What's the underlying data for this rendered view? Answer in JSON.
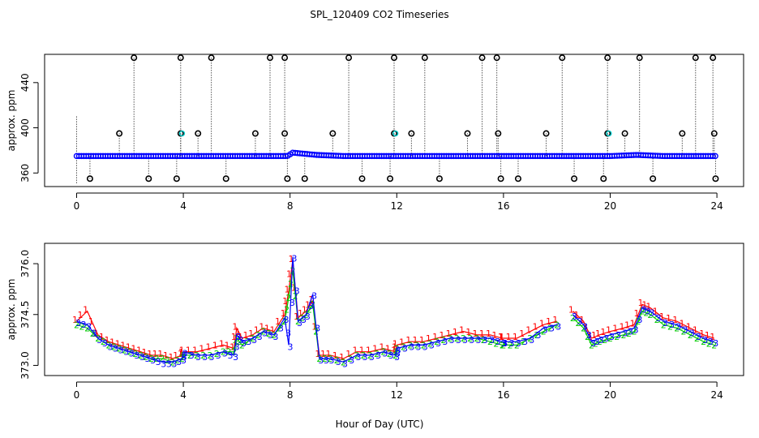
{
  "title": "SPL_120409  CO2 Timeseries",
  "xlabel": "Hour of Day (UTC)",
  "colors": {
    "series1": "#ff0000",
    "series2": "#00cc00",
    "series3": "#0000ff",
    "outlier": "#000000",
    "flag": "#00cccc",
    "frame": "#000000"
  },
  "chart_data": [
    {
      "type": "scatter",
      "name": "top-panel",
      "ylabel": "approx. ppm",
      "xlim": [
        -1.2,
        25
      ],
      "ylim": [
        348,
        465
      ],
      "xticks": [
        0,
        4,
        8,
        12,
        16,
        20,
        24
      ],
      "yticks": [
        360,
        400,
        440
      ],
      "baseline": 375,
      "baseline_series": [
        {
          "name": "series-3",
          "x": [
            0,
            2,
            4,
            6,
            7.9,
            8.1,
            9,
            10,
            12,
            14,
            16,
            18,
            20,
            21,
            22,
            24
          ],
          "y": [
            375,
            375,
            375,
            375,
            375,
            378,
            376,
            375,
            375,
            375,
            375,
            375,
            375,
            376,
            375,
            375
          ]
        }
      ],
      "outliers_high": [
        2.15,
        3.9,
        5.05,
        7.25,
        7.8,
        10.2,
        11.9,
        13.05,
        15.2,
        15.75,
        18.2,
        19.9,
        21.1,
        23.2,
        23.85
      ],
      "outliers_mid": [
        1.6,
        3.9,
        4.55,
        6.7,
        7.8,
        9.6,
        11.9,
        12.55,
        14.65,
        15.8,
        17.6,
        19.9,
        20.55,
        22.7,
        23.9
      ],
      "outliers_low": [
        0.5,
        2.7,
        3.75,
        5.6,
        7.9,
        8.55,
        10.7,
        11.75,
        13.6,
        15.9,
        16.55,
        18.65,
        19.75,
        21.6,
        23.95
      ],
      "outlier_values": {
        "high": 462,
        "mid": 395,
        "low": 355
      }
    },
    {
      "type": "line",
      "name": "bottom-panel",
      "ylabel": "approx. ppm",
      "xlim": [
        -1.2,
        25
      ],
      "ylim": [
        372.7,
        376.6
      ],
      "xticks": [
        0,
        4,
        8,
        12,
        16,
        20,
        24
      ],
      "yticks": [
        373.0,
        374.5,
        376.0
      ],
      "series": [
        {
          "name": "1",
          "x": [
            0,
            0.4,
            0.8,
            1.2,
            1.6,
            2.0,
            2.4,
            2.8,
            3.2,
            3.6,
            3.95,
            4.0,
            4.5,
            5.0,
            5.5,
            5.9,
            6.0,
            6.2,
            6.6,
            7.0,
            7.4,
            7.8,
            7.95,
            8.1,
            8.3,
            8.6,
            8.85,
            9.1,
            9.5,
            10.0,
            10.5,
            11.0,
            11.5,
            11.95,
            12.0,
            12.5,
            13.0,
            13.5,
            14.0,
            14.5,
            15.0,
            15.5,
            15.95,
            16.0,
            16.5,
            17.0,
            17.5,
            18.0,
            18.6,
            19.0,
            19.3,
            19.6,
            20.0,
            20.5,
            20.9,
            21.2,
            21.5,
            22.0,
            22.5,
            23.0,
            23.5,
            23.9
          ],
          "y": [
            374.3,
            374.6,
            373.9,
            373.7,
            373.6,
            373.5,
            373.4,
            373.3,
            373.3,
            373.2,
            373.3,
            373.4,
            373.4,
            373.5,
            373.6,
            373.5,
            374.1,
            373.8,
            373.9,
            374.1,
            374.0,
            374.5,
            375.2,
            376.1,
            374.4,
            374.6,
            374.9,
            373.3,
            373.3,
            373.2,
            373.4,
            373.4,
            373.5,
            373.4,
            373.6,
            373.7,
            373.7,
            373.8,
            373.9,
            374.0,
            373.9,
            373.9,
            373.8,
            373.8,
            373.8,
            374.0,
            374.2,
            374.3,
            374.6,
            374.3,
            373.8,
            373.9,
            374.0,
            374.1,
            374.2,
            374.8,
            374.7,
            374.4,
            374.3,
            374.1,
            373.9,
            373.8
          ]
        },
        {
          "name": "2",
          "x": [
            0,
            0.4,
            0.8,
            1.2,
            1.6,
            2.0,
            2.4,
            2.8,
            3.2,
            3.6,
            3.95,
            4.0,
            4.5,
            5.0,
            5.5,
            5.9,
            6.0,
            6.2,
            6.6,
            7.0,
            7.4,
            7.8,
            7.95,
            8.1,
            8.3,
            8.6,
            8.85,
            9.1,
            9.5,
            10.0,
            10.5,
            11.0,
            11.5,
            11.95,
            12.0,
            12.5,
            13.0,
            13.5,
            14.0,
            14.5,
            15.0,
            15.5,
            15.95,
            16.0,
            16.5,
            17.0,
            17.5,
            18.0,
            18.6,
            19.0,
            19.3,
            19.6,
            20.0,
            20.5,
            20.9,
            21.2,
            21.5,
            22.0,
            22.5,
            23.0,
            23.5,
            23.9
          ],
          "y": [
            374.2,
            374.1,
            373.8,
            373.6,
            373.5,
            373.4,
            373.3,
            373.2,
            373.2,
            373.1,
            373.2,
            373.3,
            373.3,
            373.3,
            373.4,
            373.4,
            373.8,
            373.6,
            373.8,
            374.0,
            373.9,
            374.3,
            375.0,
            375.8,
            374.3,
            374.5,
            374.8,
            373.2,
            373.2,
            373.1,
            373.3,
            373.3,
            373.4,
            373.3,
            373.5,
            373.6,
            373.6,
            373.7,
            373.8,
            373.8,
            373.8,
            373.7,
            373.6,
            373.6,
            373.6,
            373.8,
            374.0,
            374.2,
            374.4,
            374.1,
            373.6,
            373.7,
            373.8,
            373.9,
            374.0,
            374.6,
            374.5,
            374.2,
            374.1,
            373.9,
            373.7,
            373.6
          ]
        },
        {
          "name": "3",
          "x": [
            0,
            0.4,
            0.8,
            1.2,
            1.6,
            2.0,
            2.4,
            2.8,
            3.2,
            3.6,
            3.95,
            4.0,
            4.5,
            5.0,
            5.5,
            5.9,
            6.0,
            6.2,
            6.6,
            7.0,
            7.4,
            7.8,
            7.95,
            8.1,
            8.3,
            8.6,
            8.85,
            9.1,
            9.5,
            10.0,
            10.5,
            11.0,
            11.5,
            11.95,
            12.0,
            12.5,
            13.0,
            13.5,
            14.0,
            14.5,
            15.0,
            15.5,
            15.95,
            16.0,
            16.5,
            17.0,
            17.5,
            18.0,
            18.6,
            19.0,
            19.3,
            19.6,
            20.0,
            20.5,
            20.9,
            21.2,
            21.5,
            22.0,
            22.5,
            23.0,
            23.5,
            23.9
          ],
          "y": [
            374.3,
            374.2,
            373.8,
            373.6,
            373.5,
            373.4,
            373.3,
            373.2,
            373.1,
            373.1,
            373.2,
            373.4,
            373.3,
            373.3,
            373.4,
            373.3,
            373.9,
            373.7,
            373.8,
            374.0,
            373.9,
            374.4,
            373.6,
            376.2,
            374.3,
            374.5,
            375.1,
            373.2,
            373.2,
            373.1,
            373.3,
            373.3,
            373.4,
            373.3,
            373.5,
            373.6,
            373.6,
            373.7,
            373.8,
            373.8,
            373.8,
            373.8,
            373.7,
            373.7,
            373.7,
            373.8,
            374.1,
            374.2,
            374.5,
            374.2,
            373.7,
            373.8,
            373.9,
            374.0,
            374.1,
            374.7,
            374.6,
            374.3,
            374.2,
            374.0,
            373.8,
            373.7
          ]
        }
      ]
    }
  ]
}
